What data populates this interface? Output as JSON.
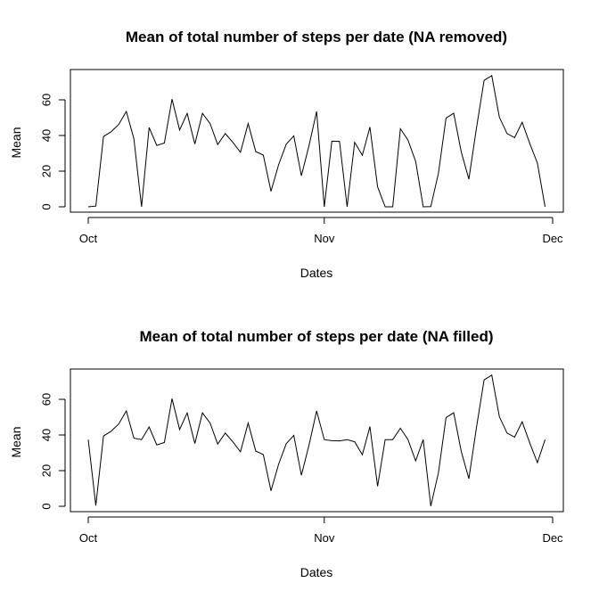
{
  "chart_data": [
    {
      "type": "line",
      "title": "Mean of total number of steps per date (NA removed)",
      "xlabel": "Dates",
      "ylabel": "Mean",
      "x_ticks": [
        "Oct",
        "Nov",
        "Dec"
      ],
      "y_ticks": [
        "0",
        "20",
        "40",
        "60"
      ],
      "xlim": [
        "2012-10-01",
        "2012-11-30"
      ],
      "ylim": [
        0,
        73.6
      ],
      "grid": false,
      "series": [
        {
          "x": [
            "2012-10-01",
            "2012-10-02",
            "2012-10-03",
            "2012-10-04",
            "2012-10-05",
            "2012-10-06",
            "2012-10-07",
            "2012-10-08",
            "2012-10-09",
            "2012-10-10",
            "2012-10-11",
            "2012-10-12",
            "2012-10-13",
            "2012-10-14",
            "2012-10-15",
            "2012-10-16",
            "2012-10-17",
            "2012-10-18",
            "2012-10-19",
            "2012-10-20",
            "2012-10-21",
            "2012-10-22",
            "2012-10-23",
            "2012-10-24",
            "2012-10-25",
            "2012-10-26",
            "2012-10-27",
            "2012-10-28",
            "2012-10-29",
            "2012-10-30",
            "2012-10-31",
            "2012-11-01",
            "2012-11-02",
            "2012-11-03",
            "2012-11-04",
            "2012-11-05",
            "2012-11-06",
            "2012-11-07",
            "2012-11-08",
            "2012-11-09",
            "2012-11-10",
            "2012-11-11",
            "2012-11-12",
            "2012-11-13",
            "2012-11-14",
            "2012-11-15",
            "2012-11-16",
            "2012-11-17",
            "2012-11-18",
            "2012-11-19",
            "2012-11-20",
            "2012-11-21",
            "2012-11-22",
            "2012-11-23",
            "2012-11-24",
            "2012-11-25",
            "2012-11-26",
            "2012-11-27",
            "2012-11-28",
            "2012-11-29",
            "2012-11-30"
          ],
          "values": [
            0,
            0.4,
            39.4,
            42.1,
            46.2,
            53.5,
            38.2,
            0,
            44.5,
            34.4,
            35.8,
            60.4,
            43.1,
            52.4,
            35.2,
            52.4,
            46.7,
            34.9,
            41.1,
            36.1,
            30.6,
            46.7,
            31.0,
            29.0,
            8.7,
            23.5,
            35.1,
            39.8,
            17.4,
            34.4,
            53.5,
            0,
            36.8,
            36.7,
            0,
            36.2,
            28.9,
            44.7,
            11.2,
            0,
            0,
            43.8,
            37.4,
            25.5,
            0,
            0.1,
            18.9,
            49.8,
            52.5,
            30.7,
            15.5,
            44.4,
            70.9,
            73.6,
            50.3,
            41.1,
            38.8,
            47.4,
            35.4,
            24.5,
            0
          ]
        }
      ]
    },
    {
      "type": "line",
      "title": "Mean of total number of steps per date (NA filled)",
      "xlabel": "Dates",
      "ylabel": "Mean",
      "x_ticks": [
        "Oct",
        "Nov",
        "Dec"
      ],
      "y_ticks": [
        "0",
        "20",
        "40",
        "60"
      ],
      "xlim": [
        "2012-10-01",
        "2012-11-30"
      ],
      "ylim": [
        0,
        73.6
      ],
      "grid": false,
      "series": [
        {
          "x": [
            "2012-10-01",
            "2012-10-02",
            "2012-10-03",
            "2012-10-04",
            "2012-10-05",
            "2012-10-06",
            "2012-10-07",
            "2012-10-08",
            "2012-10-09",
            "2012-10-10",
            "2012-10-11",
            "2012-10-12",
            "2012-10-13",
            "2012-10-14",
            "2012-10-15",
            "2012-10-16",
            "2012-10-17",
            "2012-10-18",
            "2012-10-19",
            "2012-10-20",
            "2012-10-21",
            "2012-10-22",
            "2012-10-23",
            "2012-10-24",
            "2012-10-25",
            "2012-10-26",
            "2012-10-27",
            "2012-10-28",
            "2012-10-29",
            "2012-10-30",
            "2012-10-31",
            "2012-11-01",
            "2012-11-02",
            "2012-11-03",
            "2012-11-04",
            "2012-11-05",
            "2012-11-06",
            "2012-11-07",
            "2012-11-08",
            "2012-11-09",
            "2012-11-10",
            "2012-11-11",
            "2012-11-12",
            "2012-11-13",
            "2012-11-14",
            "2012-11-15",
            "2012-11-16",
            "2012-11-17",
            "2012-11-18",
            "2012-11-19",
            "2012-11-20",
            "2012-11-21",
            "2012-11-22",
            "2012-11-23",
            "2012-11-24",
            "2012-11-25",
            "2012-11-26",
            "2012-11-27",
            "2012-11-28",
            "2012-11-29",
            "2012-11-30"
          ],
          "values": [
            37.4,
            0.4,
            39.4,
            42.1,
            46.2,
            53.5,
            38.2,
            37.4,
            44.5,
            34.4,
            35.8,
            60.4,
            43.1,
            52.4,
            35.2,
            52.4,
            46.7,
            34.9,
            41.1,
            36.1,
            30.6,
            46.7,
            31.0,
            29.0,
            8.7,
            23.5,
            35.1,
            39.8,
            17.4,
            34.4,
            53.5,
            37.4,
            36.8,
            36.7,
            37.4,
            36.2,
            28.9,
            44.7,
            11.2,
            37.4,
            37.4,
            43.8,
            37.4,
            25.5,
            37.4,
            0.1,
            18.9,
            49.8,
            52.5,
            30.7,
            15.5,
            44.4,
            70.9,
            73.6,
            50.3,
            41.1,
            38.8,
            47.4,
            35.4,
            24.5,
            37.4
          ]
        }
      ]
    }
  ]
}
